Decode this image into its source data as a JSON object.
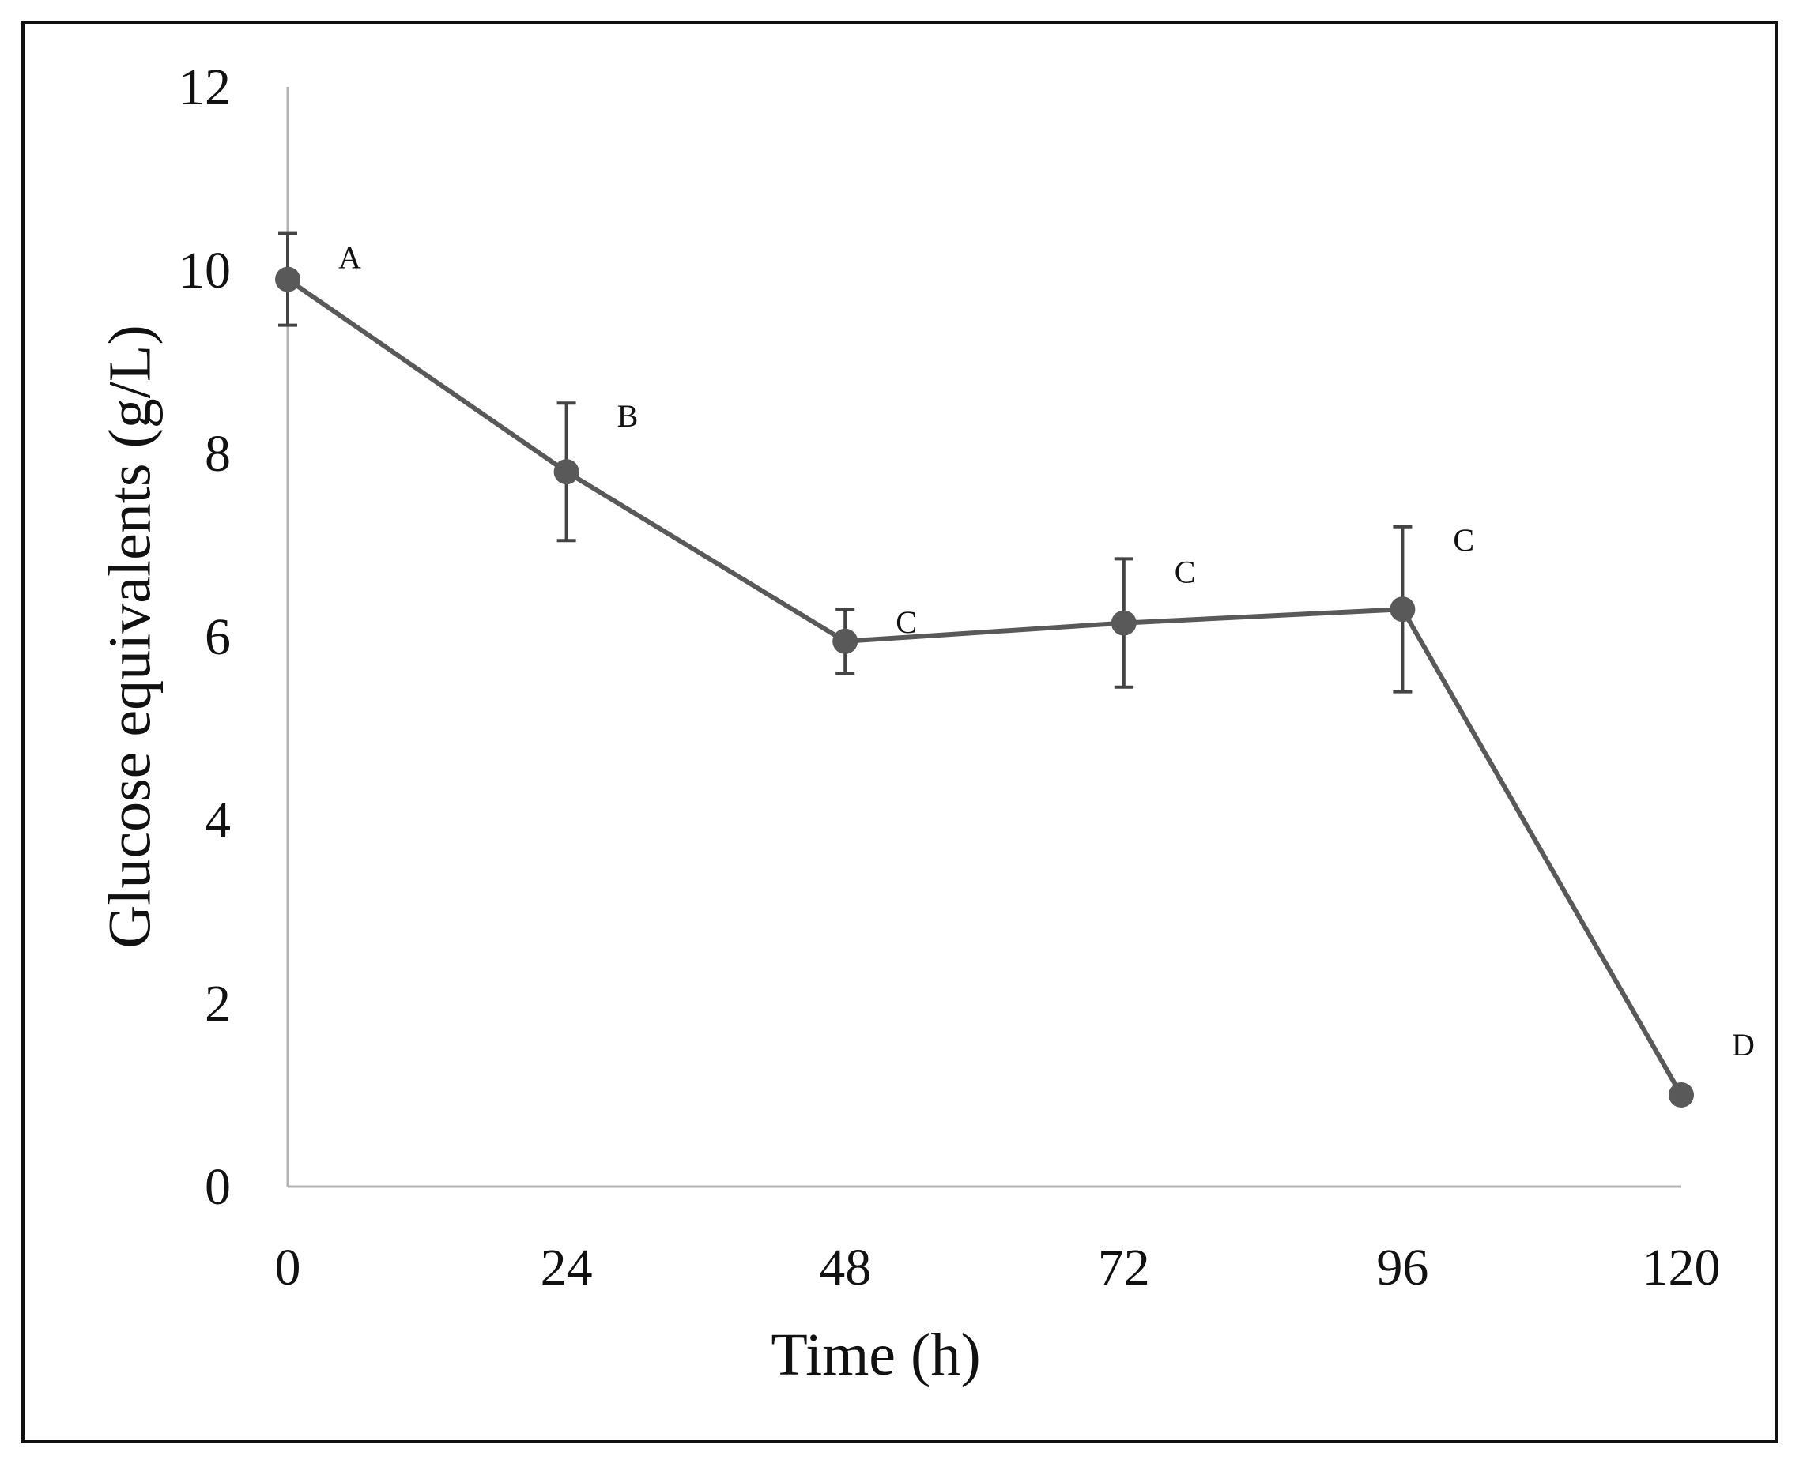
{
  "chart_data": {
    "type": "line",
    "title": "",
    "xlabel": "Time (h)",
    "ylabel": "Glucose equivalents (g/L)",
    "x": [
      0,
      24,
      48,
      72,
      96,
      120
    ],
    "xticks": [
      "0",
      "24",
      "48",
      "72",
      "96",
      "120"
    ],
    "yticks": [
      "0",
      "2",
      "4",
      "6",
      "8",
      "10",
      "12"
    ],
    "xlim": [
      0,
      120
    ],
    "ylim": [
      0,
      12
    ],
    "grid": false,
    "series": [
      {
        "name": "Glucose equivalents",
        "values": [
          9.9,
          7.8,
          5.95,
          6.15,
          6.3,
          1.0
        ],
        "error": [
          0.5,
          0.75,
          0.35,
          0.7,
          0.9,
          0.05
        ],
        "labels": [
          "A",
          "B",
          "C",
          "C",
          "C",
          "D"
        ],
        "color": "#595959"
      }
    ]
  }
}
